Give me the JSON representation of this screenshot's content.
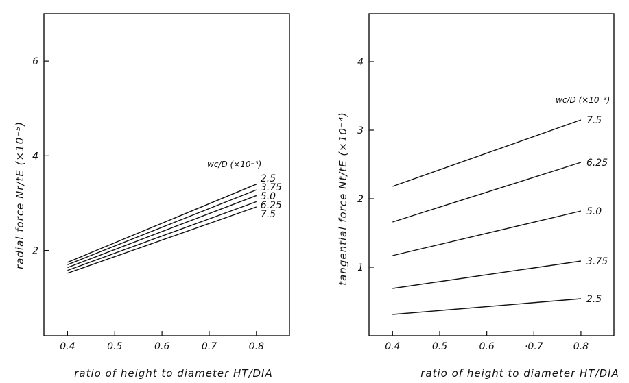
{
  "chart_data": [
    {
      "type": "line",
      "xlabel": "ratio of height to diameter HT/DIA",
      "ylabel": "radial force Nr/tE (×10⁻⁵)",
      "legend_title": "wc/D (×10⁻³)",
      "legend_placement": "right",
      "xlim": [
        0.35,
        0.87
      ],
      "ylim": [
        0.2,
        7.0
      ],
      "xticks": [
        "0.4",
        "0.5",
        "0.6",
        "0.7",
        "0.8"
      ],
      "yticks": [
        "2",
        "4",
        "6"
      ],
      "x": [
        0.4,
        0.8
      ],
      "series": [
        {
          "name": "2.5",
          "values": [
            1.75,
            3.4
          ]
        },
        {
          "name": "3.75",
          "values": [
            1.7,
            3.28
          ]
        },
        {
          "name": "5.0",
          "values": [
            1.64,
            3.16
          ]
        },
        {
          "name": "6.25",
          "values": [
            1.58,
            3.03
          ]
        },
        {
          "name": "7.5",
          "values": [
            1.52,
            2.92
          ]
        }
      ]
    },
    {
      "type": "line",
      "xlabel": "ratio of height to diameter HT/DIA",
      "ylabel": "tangential force Nt/tE (×10⁻⁴)",
      "legend_title": "wc/D (×10⁻³)",
      "legend_placement": "top-right",
      "xlim": [
        0.35,
        0.87
      ],
      "ylim": [
        0.0,
        4.7
      ],
      "xticks": [
        "0.4",
        "0.5",
        "0.6",
        "·0.7",
        "0.8"
      ],
      "yticks": [
        "1",
        "2",
        "3",
        "4"
      ],
      "x": [
        0.4,
        0.8
      ],
      "series": [
        {
          "name": "7.5",
          "values": [
            2.18,
            3.15
          ]
        },
        {
          "name": "6.25",
          "values": [
            1.66,
            2.53
          ]
        },
        {
          "name": "5.0",
          "values": [
            1.17,
            1.82
          ]
        },
        {
          "name": "3.75",
          "values": [
            0.69,
            1.09
          ]
        },
        {
          "name": "2.5",
          "values": [
            0.31,
            0.54
          ]
        }
      ]
    }
  ]
}
